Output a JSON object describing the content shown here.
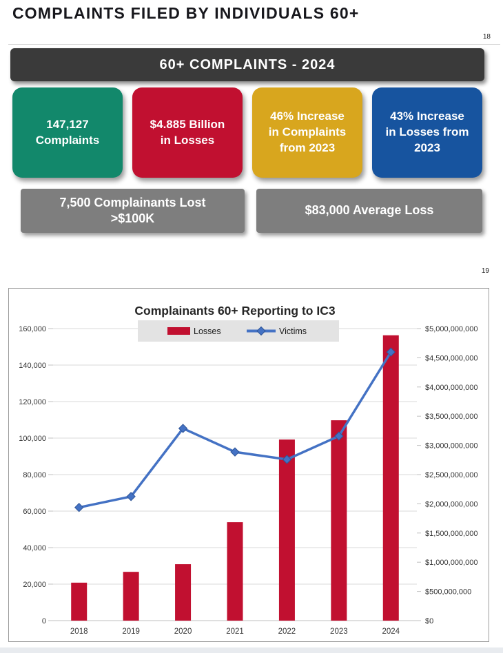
{
  "page": {
    "title": "COMPLAINTS FILED BY INDIVIDUALS 60+",
    "page_number_top": "18",
    "page_number_chart": "19"
  },
  "banner": {
    "label": "60+ COMPLAINTS - 2024",
    "bg": "#3a3a3a"
  },
  "stat_boxes": [
    {
      "text": "147,127\nComplaints",
      "color": "#12886B"
    },
    {
      "text": "$4.885 Billion\nin Losses",
      "color": "#C11030"
    },
    {
      "text": "46% Increase\nin Complaints\nfrom 2023",
      "color": "#D8A61E"
    },
    {
      "text": "43% Increase\nin Losses from\n2023",
      "color": "#17549F"
    }
  ],
  "gray_boxes": [
    {
      "text": "7,500 Complainants Lost\n>$100K"
    },
    {
      "text": "$83,000 Average Loss"
    }
  ],
  "chart_data": {
    "type": "bar+line combo",
    "title": "Complainants 60+ Reporting to IC3",
    "categories": [
      "2018",
      "2019",
      "2020",
      "2021",
      "2022",
      "2023",
      "2024"
    ],
    "series": [
      {
        "name": "Losses",
        "type": "bar",
        "axis": "right",
        "color": "#C11030",
        "values": [
          650000000,
          835000000,
          966000000,
          1685000000,
          3100000000,
          3430000000,
          4885000000
        ]
      },
      {
        "name": "Victims",
        "type": "line",
        "axis": "left",
        "color": "#4472C4",
        "marker": "diamond",
        "marker_edge": "#2F5597",
        "values": [
          62000,
          68000,
          105300,
          92400,
          88300,
          101100,
          147127
        ]
      }
    ],
    "left_axis": {
      "min": 0,
      "max": 160000,
      "step": 20000,
      "format": "number"
    },
    "right_axis": {
      "min": 0,
      "max": 5000000000,
      "step": 500000000,
      "format": "currency"
    },
    "legend": {
      "position": "top",
      "background": "#e3e3e3",
      "entries": [
        "Losses",
        "Victims"
      ]
    },
    "grid": true,
    "grid_color": "#d9d9d9",
    "axis_line_color": "#bfbfbf",
    "label_color": "#333333"
  }
}
